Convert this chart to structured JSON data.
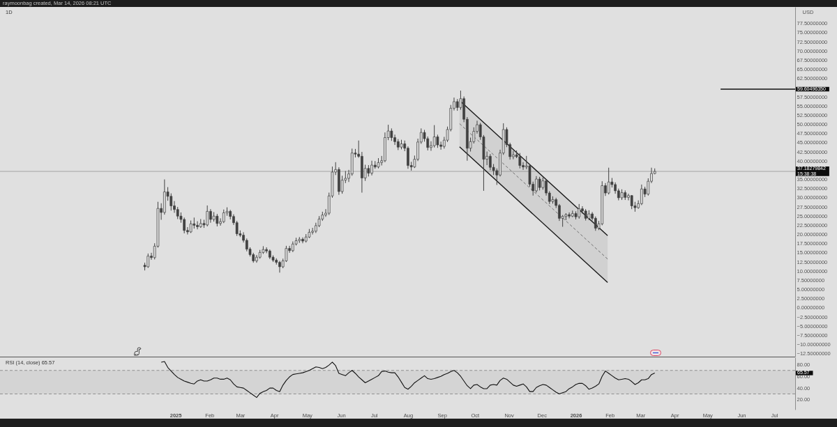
{
  "chart_data": [
    {
      "type": "candlestick",
      "title": "1D",
      "ylabel": "USD",
      "annotations": [
        "raymoonbag created, Mar 14, 2026 08:21 UTC",
        "15:38:38"
      ],
      "color": "#404040",
      "x": [
        "2024-12-04",
        "2024-12-07",
        "2024-12-10",
        "2024-12-13",
        "2024-12-16",
        "2024-12-19",
        "2024-12-22",
        "2024-12-25",
        "2024-12-28",
        "2024-12-31",
        "2025-01-03",
        "2025-01-06",
        "2025-01-09",
        "2025-01-12",
        "2025-01-15",
        "2025-01-18",
        "2025-01-21",
        "2025-01-24",
        "2025-01-27",
        "2025-01-30",
        "2025-02-02",
        "2025-02-05",
        "2025-02-08",
        "2025-02-11",
        "2025-02-14",
        "2025-02-17",
        "2025-02-20",
        "2025-02-23",
        "2025-02-26",
        "2025-03-01",
        "2025-03-04",
        "2025-03-07",
        "2025-03-10",
        "2025-03-13",
        "2025-03-16",
        "2025-03-19",
        "2025-03-22",
        "2025-03-25",
        "2025-03-28",
        "2025-03-31",
        "2025-04-03",
        "2025-04-06",
        "2025-04-09",
        "2025-04-12",
        "2025-04-15",
        "2025-04-18",
        "2025-04-21",
        "2025-04-24",
        "2025-04-27",
        "2025-04-30",
        "2025-05-03",
        "2025-05-06",
        "2025-05-09",
        "2025-05-12",
        "2025-05-15",
        "2025-05-18",
        "2025-05-21",
        "2025-05-24",
        "2025-05-27",
        "2025-05-30",
        "2025-06-02",
        "2025-06-05",
        "2025-06-08",
        "2025-06-11",
        "2025-06-14",
        "2025-06-17",
        "2025-06-20",
        "2025-06-23",
        "2025-06-26",
        "2025-06-29",
        "2025-07-02",
        "2025-07-05",
        "2025-07-08",
        "2025-07-11",
        "2025-07-14",
        "2025-07-17",
        "2025-07-20",
        "2025-07-23",
        "2025-07-26",
        "2025-07-29",
        "2025-08-01",
        "2025-08-04",
        "2025-08-07",
        "2025-08-10",
        "2025-08-13",
        "2025-08-16",
        "2025-08-19",
        "2025-08-22",
        "2025-08-25",
        "2025-08-28",
        "2025-08-31",
        "2025-09-03",
        "2025-09-06",
        "2025-09-09",
        "2025-09-12",
        "2025-09-15",
        "2025-09-18",
        "2025-09-21",
        "2025-09-24",
        "2025-09-27",
        "2025-09-30",
        "2025-10-03",
        "2025-10-06",
        "2025-10-09",
        "2025-10-12",
        "2025-10-15",
        "2025-10-18",
        "2025-10-21",
        "2025-10-24",
        "2025-10-27",
        "2025-10-30",
        "2025-11-02",
        "2025-11-05",
        "2025-11-08",
        "2025-11-11",
        "2025-11-14",
        "2025-11-17",
        "2025-11-20",
        "2025-11-23",
        "2025-11-26",
        "2025-11-29",
        "2025-12-02",
        "2025-12-05",
        "2025-12-08",
        "2025-12-11",
        "2025-12-14",
        "2025-12-17",
        "2025-12-20",
        "2025-12-23",
        "2025-12-26",
        "2025-12-29",
        "2026-01-01",
        "2026-01-04",
        "2026-01-07",
        "2026-01-10",
        "2026-01-13",
        "2026-01-16",
        "2026-01-19",
        "2026-01-22",
        "2026-01-25",
        "2026-01-28",
        "2026-01-31",
        "2026-02-03",
        "2026-02-06",
        "2026-02-09",
        "2026-02-12",
        "2026-02-15",
        "2026-02-18",
        "2026-02-21",
        "2026-02-24",
        "2026-02-27",
        "2026-03-02",
        "2026-03-05",
        "2026-03-08",
        "2026-03-11",
        "2026-03-14"
      ],
      "ohlc": [
        [
          11.6,
          12.3,
          10.2,
          11.2
        ],
        [
          11.2,
          14.8,
          10.9,
          14.1
        ],
        [
          14.1,
          15,
          13.1,
          13.7
        ],
        [
          13.7,
          17.6,
          13.2,
          16.8
        ],
        [
          16.8,
          28.9,
          16.4,
          27.1
        ],
        [
          27.1,
          28.5,
          24,
          26
        ],
        [
          26,
          35,
          25.4,
          31.6
        ],
        [
          31.6,
          32.9,
          29.2,
          30.4
        ],
        [
          30.4,
          31.2,
          26.5,
          27.8
        ],
        [
          27.8,
          29.1,
          25.9,
          26.8
        ],
        [
          26.8,
          27.5,
          24.2,
          25
        ],
        [
          25,
          26,
          23.2,
          24.1
        ],
        [
          24.1,
          24.6,
          20.3,
          21.1
        ],
        [
          21.1,
          22,
          20,
          20.7
        ],
        [
          20.7,
          23.8,
          20.4,
          22.9
        ],
        [
          22.9,
          24.6,
          21.6,
          22.5
        ],
        [
          22.5,
          23.6,
          21.4,
          22.1
        ],
        [
          22.1,
          24.2,
          21.8,
          23
        ],
        [
          23,
          24,
          21.8,
          22.6
        ],
        [
          22.6,
          27.9,
          22.2,
          26.3
        ],
        [
          26.3,
          26.9,
          23.2,
          24.1
        ],
        [
          24.1,
          26.1,
          23.5,
          25
        ],
        [
          25,
          25.6,
          22.2,
          23
        ],
        [
          23,
          24.4,
          22.4,
          23.5
        ],
        [
          23.5,
          26.8,
          23.1,
          25.9
        ],
        [
          25.9,
          27.4,
          25.1,
          26.3
        ],
        [
          26.3,
          26.7,
          24.1,
          24.9
        ],
        [
          24.9,
          25.5,
          22.6,
          23.2
        ],
        [
          23.2,
          23.7,
          19.6,
          20.2
        ],
        [
          20.2,
          21.1,
          19.3,
          19.8
        ],
        [
          19.8,
          20.6,
          17.8,
          18.4
        ],
        [
          18.4,
          18.9,
          15.4,
          16
        ],
        [
          16,
          16.5,
          14,
          14.5
        ],
        [
          14.5,
          15,
          12.3,
          12.8
        ],
        [
          12.8,
          14.4,
          12.3,
          13.8
        ],
        [
          13.8,
          15.8,
          13.4,
          15.1
        ],
        [
          15.1,
          16.8,
          14.7,
          15.9
        ],
        [
          15.9,
          16.5,
          14.9,
          15.5
        ],
        [
          15.5,
          15.9,
          13.3,
          13.8
        ],
        [
          13.8,
          14.3,
          12.5,
          13
        ],
        [
          13,
          13.5,
          11.8,
          12.4
        ],
        [
          12.4,
          12.8,
          9.6,
          11.2
        ],
        [
          11.2,
          13.4,
          10.8,
          12.8
        ],
        [
          12.8,
          16.9,
          12.5,
          16.2
        ],
        [
          16.2,
          16.9,
          15,
          15.6
        ],
        [
          15.6,
          18.1,
          15.2,
          17.4
        ],
        [
          17.4,
          19.1,
          17,
          18.3
        ],
        [
          18.3,
          19.3,
          17.7,
          18.7
        ],
        [
          18.7,
          19.2,
          17.6,
          18.2
        ],
        [
          18.2,
          20.1,
          17.8,
          19.3
        ],
        [
          19.3,
          21.5,
          19,
          20.6
        ],
        [
          20.6,
          21.8,
          20,
          20.9
        ],
        [
          20.9,
          23.2,
          20.4,
          22.4
        ],
        [
          22.4,
          25,
          22,
          24.2
        ],
        [
          24.2,
          26.2,
          23.7,
          25.3
        ],
        [
          25.3,
          26.9,
          24.8,
          25.8
        ],
        [
          25.8,
          31.4,
          25.3,
          30.5
        ],
        [
          30.5,
          38.5,
          30,
          37
        ],
        [
          37,
          39.7,
          36.2,
          37.7
        ],
        [
          37.7,
          38.3,
          30.8,
          31.7
        ],
        [
          31.7,
          36,
          31.1,
          34.8
        ],
        [
          34.8,
          37.3,
          34,
          35.3
        ],
        [
          35.3,
          37.6,
          34.3,
          36.5
        ],
        [
          36.5,
          43.4,
          36,
          42.2
        ],
        [
          42.2,
          43.3,
          41,
          41.9
        ],
        [
          41.9,
          45.6,
          40.9,
          41.3
        ],
        [
          41.3,
          42.5,
          31.4,
          35.4
        ],
        [
          35.4,
          39,
          34.6,
          38
        ],
        [
          38,
          38.9,
          35.8,
          36.7
        ],
        [
          36.7,
          40.1,
          36.1,
          38.9
        ],
        [
          38.9,
          40,
          37.9,
          38.4
        ],
        [
          38.4,
          40.8,
          38,
          39.6
        ],
        [
          39.6,
          41.4,
          38.8,
          40.1
        ],
        [
          40.1,
          47.8,
          39.7,
          46.4
        ],
        [
          46.4,
          49.9,
          45.7,
          48.2
        ],
        [
          48.2,
          48.9,
          45.5,
          46.4
        ],
        [
          46.4,
          47.2,
          44.4,
          45.3
        ],
        [
          45.3,
          46,
          43,
          43.8
        ],
        [
          43.8,
          45.8,
          43.2,
          44.7
        ],
        [
          44.7,
          45.6,
          42.7,
          43.5
        ],
        [
          43.5,
          44,
          37.9,
          38.8
        ],
        [
          38.8,
          39.8,
          37.4,
          38.4
        ],
        [
          38.4,
          41.5,
          38.1,
          40.5
        ],
        [
          40.5,
          46.1,
          40,
          45.2
        ],
        [
          45.2,
          48.9,
          44.7,
          47.8
        ],
        [
          47.8,
          48.5,
          45.3,
          46.1
        ],
        [
          46.1,
          46.7,
          42.9,
          43.7
        ],
        [
          43.7,
          45.4,
          42.8,
          44.2
        ],
        [
          44.2,
          49.8,
          43.7,
          46.6
        ],
        [
          46.6,
          47.2,
          43.6,
          44.4
        ],
        [
          44.4,
          45.3,
          43.1,
          44
        ],
        [
          44,
          46.6,
          43.4,
          45.7
        ],
        [
          45.7,
          49.4,
          45.2,
          48.6
        ],
        [
          48.6,
          55.3,
          48.1,
          54.4
        ],
        [
          54.4,
          57.3,
          53.8,
          56.2
        ],
        [
          56.2,
          56.9,
          53.7,
          54.6
        ],
        [
          54.6,
          59.2,
          54,
          57
        ],
        [
          57,
          57.6,
          50.6,
          51.4
        ],
        [
          51.4,
          52,
          40.1,
          43.5
        ],
        [
          43.5,
          46.4,
          42.6,
          45.3
        ],
        [
          45.3,
          49.2,
          44.8,
          48.1
        ],
        [
          48.1,
          51,
          47.5,
          49.9
        ],
        [
          49.9,
          50.4,
          45.8,
          46.6
        ],
        [
          46.6,
          47.1,
          31.9,
          40.5
        ],
        [
          40.5,
          42.6,
          38.9,
          41.3
        ],
        [
          41.3,
          41.9,
          37.5,
          38.3
        ],
        [
          38.3,
          39.2,
          36.2,
          37.4
        ],
        [
          37.4,
          38,
          33.5,
          36.2
        ],
        [
          36.2,
          43.1,
          35.8,
          42.2
        ],
        [
          42.2,
          50.3,
          41.7,
          48.6
        ],
        [
          48.6,
          49.2,
          43.8,
          44.5
        ],
        [
          44.5,
          45,
          40.4,
          41.2
        ],
        [
          41.2,
          42.8,
          40.5,
          41.7
        ],
        [
          41.7,
          42.9,
          40.8,
          41.2
        ],
        [
          41.2,
          42.2,
          38,
          38.8
        ],
        [
          38.8,
          39.7,
          37.6,
          38.4
        ],
        [
          38.4,
          41.4,
          37.8,
          38.7
        ],
        [
          38.7,
          39.2,
          33,
          33.7
        ],
        [
          33.7,
          34.4,
          30.6,
          31.9
        ],
        [
          31.9,
          35.9,
          31.4,
          35.1
        ],
        [
          35.1,
          35.7,
          32,
          32.8
        ],
        [
          32.8,
          35.5,
          32.2,
          34.6
        ],
        [
          34.6,
          35.1,
          30.6,
          31.3
        ],
        [
          31.3,
          31.8,
          28.3,
          29
        ],
        [
          29,
          30.4,
          28.4,
          29.5
        ],
        [
          29.5,
          30,
          27.2,
          27.9
        ],
        [
          27.9,
          28.3,
          23.7,
          24.4
        ],
        [
          24.4,
          25.3,
          22.1,
          24.9
        ],
        [
          24.9,
          25.8,
          23.9,
          25.4
        ],
        [
          25.4,
          26,
          24.4,
          25
        ],
        [
          25,
          26.5,
          24.7,
          25.7
        ],
        [
          25.7,
          26.3,
          24.1,
          24.8
        ],
        [
          24.8,
          28.3,
          24.3,
          27
        ],
        [
          27,
          27.7,
          25.7,
          26.4
        ],
        [
          26.4,
          26.9,
          23.8,
          24.4
        ],
        [
          24.4,
          26.6,
          23.9,
          25.6
        ],
        [
          25.6,
          26.1,
          23.8,
          24.4
        ],
        [
          24.4,
          24.9,
          21,
          21.7
        ],
        [
          21.7,
          23.7,
          21.2,
          22.9
        ],
        [
          22.9,
          34.5,
          22.5,
          33.3
        ],
        [
          33.3,
          34,
          30.5,
          31.3
        ],
        [
          31.3,
          38.2,
          30.9,
          34.3
        ],
        [
          34.3,
          35.4,
          32.8,
          33.6
        ],
        [
          33.6,
          34.2,
          31.1,
          31.9
        ],
        [
          31.9,
          32.5,
          29.3,
          30
        ],
        [
          30,
          32.3,
          29.4,
          31.4
        ],
        [
          31.4,
          32,
          29.4,
          30.1
        ],
        [
          30.1,
          31.1,
          29.3,
          30.6
        ],
        [
          30.6,
          30.7,
          26.9,
          27.8
        ],
        [
          27.8,
          28.9,
          26.2,
          27.3
        ],
        [
          27.3,
          29.3,
          27,
          28.4
        ],
        [
          28.4,
          33.6,
          28,
          32.4
        ],
        [
          32.4,
          33,
          30.2,
          31
        ],
        [
          31,
          35.3,
          30.6,
          34.5
        ],
        [
          34.5,
          38.2,
          34,
          36.6
        ],
        [
          36.6,
          38,
          36.4,
          37.18
        ]
      ],
      "series": [
        {
          "type": "line",
          "color": "#111111",
          "x": [
            "2025-09-17",
            "2026-01-30"
          ],
          "values": [
            56.5,
            19.7
          ]
        },
        {
          "type": "line",
          "color": "#111111",
          "x": [
            "2025-09-17",
            "2026-01-30"
          ],
          "values": [
            43.9,
            6.9
          ]
        },
        {
          "type": "line",
          "color": "#707070",
          "line_style": "dashed",
          "x": [
            "2025-09-17",
            "2026-01-30"
          ],
          "values": [
            50.2,
            13.3
          ],
          "lower": [
            43.9,
            6.9
          ],
          "upper": [
            56.5,
            19.7
          ]
        },
        {
          "type": "line",
          "color": "#111111",
          "x": [
            "2026-05-13",
            "2026-07-20"
          ],
          "values": [
            59.6049635,
            59.6049635
          ],
          "value_labels": [
            null,
            "59.60496350"
          ]
        }
      ],
      "ref_lines": [
        {
          "axis": "y",
          "value": 37.18279842,
          "label": "37.18279842",
          "color": "#a3a3a3"
        }
      ],
      "xlim": [
        "2024-07-25",
        "2026-07-20"
      ],
      "ylim": [
        -13.3,
        82
      ],
      "yticks": [
        {
          "value": 77.5,
          "label": "77.50000000"
        },
        {
          "value": 75,
          "label": "75.00000000"
        },
        {
          "value": 72.5,
          "label": "72.50000000"
        },
        {
          "value": 70,
          "label": "70.00000000"
        },
        {
          "value": 67.5,
          "label": "67.50000000"
        },
        {
          "value": 65,
          "label": "65.00000000"
        },
        {
          "value": 62.5,
          "label": "62.50000000"
        },
        {
          "value": 57.5,
          "label": "57.50000000"
        },
        {
          "value": 55,
          "label": "55.00000000"
        },
        {
          "value": 52.5,
          "label": "52.50000000"
        },
        {
          "value": 50,
          "label": "50.00000000"
        },
        {
          "value": 47.5,
          "label": "47.50000000"
        },
        {
          "value": 45,
          "label": "45.00000000"
        },
        {
          "value": 42.5,
          "label": "42.50000000"
        },
        {
          "value": 40,
          "label": "40.00000000"
        },
        {
          "value": 35,
          "label": "35.00000000"
        },
        {
          "value": 32.5,
          "label": "32.50000000"
        },
        {
          "value": 30,
          "label": "30.00000000"
        },
        {
          "value": 27.5,
          "label": "27.50000000"
        },
        {
          "value": 25,
          "label": "25.00000000"
        },
        {
          "value": 22.5,
          "label": "22.50000000"
        },
        {
          "value": 20,
          "label": "20.00000000"
        },
        {
          "value": 17.5,
          "label": "17.50000000"
        },
        {
          "value": 15,
          "label": "15.00000000"
        },
        {
          "value": 12.5,
          "label": "12.50000000"
        },
        {
          "value": 10,
          "label": "10.00000000"
        },
        {
          "value": 7.5,
          "label": "7.50000000"
        },
        {
          "value": 5,
          "label": "5.00000000"
        },
        {
          "value": 2.5,
          "label": "2.50000000"
        },
        {
          "value": 0,
          "label": "0.00000000"
        },
        {
          "value": -2.5,
          "label": "−2.50000000"
        },
        {
          "value": -5,
          "label": "−5.00000000"
        },
        {
          "value": -7.5,
          "label": "−7.50000000"
        },
        {
          "value": -10,
          "label": "−10.00000000"
        },
        {
          "value": -12.5,
          "label": "−12.50000000"
        }
      ],
      "tick_labels": "y"
    },
    {
      "type": "line",
      "title": "RSI (14, close) 65.57",
      "annotations": [
        "65.57"
      ],
      "x": [
        "2024-12-19",
        "2024-12-22",
        "2024-12-25",
        "2024-12-28",
        "2024-12-31",
        "2025-01-03",
        "2025-01-06",
        "2025-01-09",
        "2025-01-12",
        "2025-01-15",
        "2025-01-18",
        "2025-01-21",
        "2025-01-24",
        "2025-01-27",
        "2025-01-30",
        "2025-02-02",
        "2025-02-05",
        "2025-02-08",
        "2025-02-11",
        "2025-02-14",
        "2025-02-17",
        "2025-02-20",
        "2025-02-23",
        "2025-02-26",
        "2025-03-01",
        "2025-03-04",
        "2025-03-07",
        "2025-03-10",
        "2025-03-13",
        "2025-03-16",
        "2025-03-19",
        "2025-03-22",
        "2025-03-25",
        "2025-03-28",
        "2025-03-31",
        "2025-04-03",
        "2025-04-06",
        "2025-04-09",
        "2025-04-12",
        "2025-04-15",
        "2025-04-18",
        "2025-04-21",
        "2025-04-24",
        "2025-04-27",
        "2025-04-30",
        "2025-05-03",
        "2025-05-06",
        "2025-05-09",
        "2025-05-12",
        "2025-05-15",
        "2025-05-18",
        "2025-05-21",
        "2025-05-24",
        "2025-05-27",
        "2025-05-30",
        "2025-06-02",
        "2025-06-05",
        "2025-06-08",
        "2025-06-11",
        "2025-06-14",
        "2025-06-17",
        "2025-06-20",
        "2025-06-23",
        "2025-06-26",
        "2025-06-29",
        "2025-07-02",
        "2025-07-05",
        "2025-07-08",
        "2025-07-11",
        "2025-07-14",
        "2025-07-17",
        "2025-07-20",
        "2025-07-23",
        "2025-07-26",
        "2025-07-29",
        "2025-08-01",
        "2025-08-04",
        "2025-08-07",
        "2025-08-10",
        "2025-08-13",
        "2025-08-16",
        "2025-08-19",
        "2025-08-22",
        "2025-08-25",
        "2025-08-28",
        "2025-08-31",
        "2025-09-03",
        "2025-09-06",
        "2025-09-09",
        "2025-09-12",
        "2025-09-15",
        "2025-09-18",
        "2025-09-21",
        "2025-09-24",
        "2025-09-27",
        "2025-09-30",
        "2025-10-03",
        "2025-10-06",
        "2025-10-09",
        "2025-10-12",
        "2025-10-15",
        "2025-10-18",
        "2025-10-21",
        "2025-10-24",
        "2025-10-27",
        "2025-10-30",
        "2025-11-02",
        "2025-11-05",
        "2025-11-08",
        "2025-11-11",
        "2025-11-14",
        "2025-11-17",
        "2025-11-20",
        "2025-11-23",
        "2025-11-26",
        "2025-11-29",
        "2025-12-02",
        "2025-12-05",
        "2025-12-08",
        "2025-12-11",
        "2025-12-14",
        "2025-12-17",
        "2025-12-20",
        "2025-12-23",
        "2025-12-26",
        "2025-12-29",
        "2026-01-01",
        "2026-01-04",
        "2026-01-07",
        "2026-01-10",
        "2026-01-13",
        "2026-01-16",
        "2026-01-19",
        "2026-01-22",
        "2026-01-25",
        "2026-01-28",
        "2026-01-31",
        "2026-02-03",
        "2026-02-06",
        "2026-02-09",
        "2026-02-12",
        "2026-02-15",
        "2026-02-18",
        "2026-02-21",
        "2026-02-24",
        "2026-02-27",
        "2026-03-02",
        "2026-03-05",
        "2026-03-08",
        "2026-03-11",
        "2026-03-14"
      ],
      "series": [
        {
          "color": "#111111",
          "values": [
            84,
            85,
            75,
            69,
            63,
            58,
            55,
            52,
            50,
            48,
            47,
            52,
            54,
            52,
            52,
            54,
            57,
            57,
            55,
            55,
            57,
            54,
            47,
            42,
            41,
            40,
            36,
            32,
            28,
            24,
            31,
            34,
            36,
            40,
            40,
            36,
            34,
            45,
            53,
            59,
            63,
            64,
            65,
            66,
            68,
            70,
            73,
            76,
            75,
            73,
            75,
            79,
            84,
            78,
            65,
            63,
            61,
            66,
            70,
            65,
            59,
            54,
            49,
            52,
            55,
            58,
            61,
            68,
            69,
            67,
            66,
            66,
            59,
            50,
            41,
            38,
            43,
            49,
            53,
            57,
            61,
            56,
            55,
            56,
            58,
            60,
            63,
            65,
            68,
            70,
            66,
            60,
            52,
            44,
            39,
            45,
            46,
            42,
            39,
            39,
            45,
            46,
            45,
            53,
            57,
            55,
            50,
            45,
            43,
            45,
            47,
            42,
            34,
            34,
            41,
            44,
            46,
            45,
            41,
            37,
            33,
            30,
            32,
            34,
            39,
            42,
            46,
            48,
            48,
            44,
            38,
            40,
            43,
            47,
            60,
            69,
            65,
            61,
            57,
            54,
            55,
            56,
            55,
            51,
            46,
            49,
            54,
            54,
            56,
            63,
            65.57
          ]
        }
      ],
      "bands": [
        {
          "axis": "y",
          "from": 30,
          "to": 70,
          "color": "#d4d4d4"
        }
      ],
      "ref_lines": [
        {
          "axis": "y",
          "value": 70,
          "color": "#8f8f8f",
          "line_style": "dashed"
        },
        {
          "axis": "y",
          "value": 30,
          "color": "#8f8f8f",
          "line_style": "dashed"
        }
      ],
      "xlim": [
        "2024-07-25",
        "2026-07-20"
      ],
      "xticks": [
        {
          "value": "2025-01-01",
          "label": "2025"
        },
        {
          "value": "2025-02-01",
          "label": "Feb"
        },
        {
          "value": "2025-03-01",
          "label": "Mar"
        },
        {
          "value": "2025-04-01",
          "label": "Apr"
        },
        {
          "value": "2025-05-01",
          "label": "May"
        },
        {
          "value": "2025-06-01",
          "label": "Jun"
        },
        {
          "value": "2025-07-01",
          "label": "Jul"
        },
        {
          "value": "2025-08-01",
          "label": "Aug"
        },
        {
          "value": "2025-09-01",
          "label": "Sep"
        },
        {
          "value": "2025-10-01",
          "label": "Oct"
        },
        {
          "value": "2025-11-01",
          "label": "Nov"
        },
        {
          "value": "2025-12-01",
          "label": "Dec"
        },
        {
          "value": "2026-01-01",
          "label": "2026"
        },
        {
          "value": "2026-02-01",
          "label": "Feb"
        },
        {
          "value": "2026-03-01",
          "label": "Mar"
        },
        {
          "value": "2026-04-01",
          "label": "Apr"
        },
        {
          "value": "2026-05-01",
          "label": "May"
        },
        {
          "value": "2026-06-01",
          "label": "Jun"
        },
        {
          "value": "2026-07-01",
          "label": "Jul"
        }
      ],
      "ylim": [
        3.4,
        92.2
      ],
      "yticks": [
        {
          "value": 20,
          "label": "20.00"
        },
        {
          "value": 40,
          "label": "40.00"
        },
        {
          "value": 60,
          "label": "60.00"
        },
        {
          "value": 80,
          "label": "80.00"
        }
      ]
    }
  ]
}
